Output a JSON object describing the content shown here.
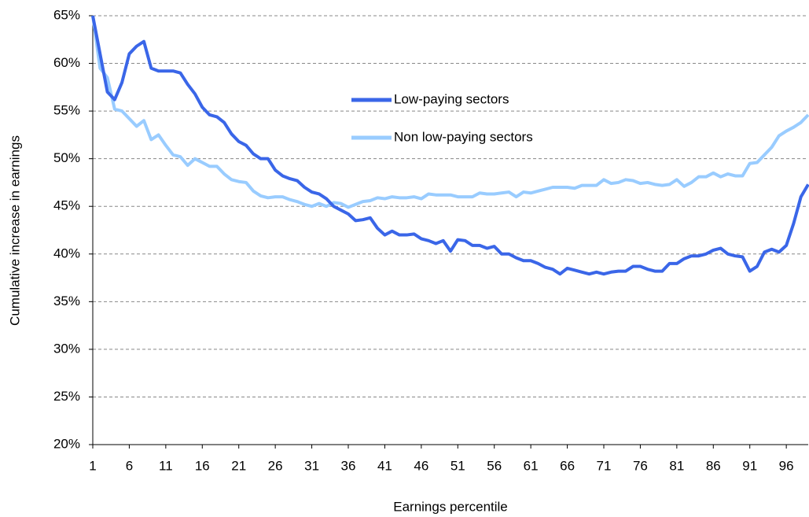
{
  "chart_data": {
    "type": "line",
    "x_label": "Earnings percentile",
    "y_label": "Cumulative increase in earnings",
    "x": [
      1,
      2,
      3,
      4,
      5,
      6,
      7,
      8,
      9,
      10,
      11,
      12,
      13,
      14,
      15,
      16,
      17,
      18,
      19,
      20,
      21,
      22,
      23,
      24,
      25,
      26,
      27,
      28,
      29,
      30,
      31,
      32,
      33,
      34,
      35,
      36,
      37,
      38,
      39,
      40,
      41,
      42,
      43,
      44,
      45,
      46,
      47,
      48,
      49,
      50,
      51,
      52,
      53,
      54,
      55,
      56,
      57,
      58,
      59,
      60,
      61,
      62,
      63,
      64,
      65,
      66,
      67,
      68,
      69,
      70,
      71,
      72,
      73,
      74,
      75,
      76,
      77,
      78,
      79,
      80,
      81,
      82,
      83,
      84,
      85,
      86,
      87,
      88,
      89,
      90,
      91,
      92,
      93,
      94,
      95,
      96,
      97,
      98,
      99
    ],
    "xlim": [
      1,
      99
    ],
    "xticks": [
      1,
      6,
      11,
      16,
      21,
      26,
      31,
      36,
      41,
      46,
      51,
      56,
      61,
      66,
      71,
      76,
      81,
      86,
      91,
      96
    ],
    "ylim": [
      20,
      65
    ],
    "yticks": [
      {
        "value": 20,
        "label": "20%"
      },
      {
        "value": 25,
        "label": "25%"
      },
      {
        "value": 30,
        "label": "30%"
      },
      {
        "value": 35,
        "label": "35%"
      },
      {
        "value": 40,
        "label": "40%"
      },
      {
        "value": 45,
        "label": "45%"
      },
      {
        "value": 50,
        "label": "50%"
      },
      {
        "value": 55,
        "label": "55%"
      },
      {
        "value": 60,
        "label": "60%"
      },
      {
        "value": 65,
        "label": "65%"
      }
    ],
    "grid": true,
    "series": [
      {
        "name": "Low-paying sectors",
        "color": "#3a66e8",
        "values": [
          65,
          61,
          57,
          56.2,
          58,
          61,
          61.8,
          62.3,
          59.5,
          59.2,
          59.2,
          59.2,
          59,
          57.8,
          56.8,
          55.4,
          54.6,
          54.4,
          53.8,
          52.6,
          51.8,
          51.4,
          50.5,
          50,
          50,
          48.8,
          48.2,
          47.9,
          47.7,
          47,
          46.5,
          46.3,
          45.8,
          45,
          44.6,
          44.2,
          43.5,
          43.6,
          43.8,
          42.7,
          42,
          42.4,
          42,
          42,
          42.1,
          41.6,
          41.4,
          41.1,
          41.4,
          40.3,
          41.5,
          41.4,
          40.9,
          40.9,
          40.6,
          40.8,
          40,
          40,
          39.6,
          39.3,
          39.3,
          39,
          38.6,
          38.4,
          37.9,
          38.5,
          38.3,
          38.1,
          37.9,
          38.1,
          37.9,
          38.1,
          38.2,
          38.2,
          38.7,
          38.7,
          38.4,
          38.2,
          38.2,
          39,
          39,
          39.5,
          39.8,
          39.8,
          40,
          40.4,
          40.6,
          40,
          39.8,
          39.7,
          38.2,
          38.7,
          40.2,
          40.5,
          40.2,
          40.9,
          43.2,
          46,
          47.3
        ]
      },
      {
        "name": "Non low-paying sectors",
        "color": "#99ccff",
        "values": [
          65,
          59.5,
          58.5,
          55.2,
          55,
          54.2,
          53.4,
          54,
          52,
          52.5,
          51.4,
          50.4,
          50.2,
          49.3,
          50,
          49.6,
          49.2,
          49.2,
          48.4,
          47.8,
          47.6,
          47.5,
          46.6,
          46.1,
          45.9,
          46,
          46,
          45.7,
          45.5,
          45.2,
          45,
          45.3,
          45,
          45.4,
          45.3,
          44.9,
          45.2,
          45.5,
          45.6,
          45.9,
          45.8,
          46,
          45.9,
          45.9,
          46,
          45.8,
          46.3,
          46.2,
          46.2,
          46.2,
          46,
          46,
          46,
          46.4,
          46.3,
          46.3,
          46.4,
          46.5,
          46,
          46.5,
          46.4,
          46.6,
          46.8,
          47,
          47,
          47,
          46.9,
          47.2,
          47.2,
          47.2,
          47.8,
          47.4,
          47.5,
          47.8,
          47.7,
          47.4,
          47.5,
          47.3,
          47.2,
          47.3,
          47.8,
          47.1,
          47.5,
          48.1,
          48.1,
          48.5,
          48.1,
          48.4,
          48.2,
          48.2,
          49.5,
          49.6,
          50.4,
          51.2,
          52.4,
          52.9,
          53.3,
          53.8,
          54.6
        ]
      }
    ]
  }
}
